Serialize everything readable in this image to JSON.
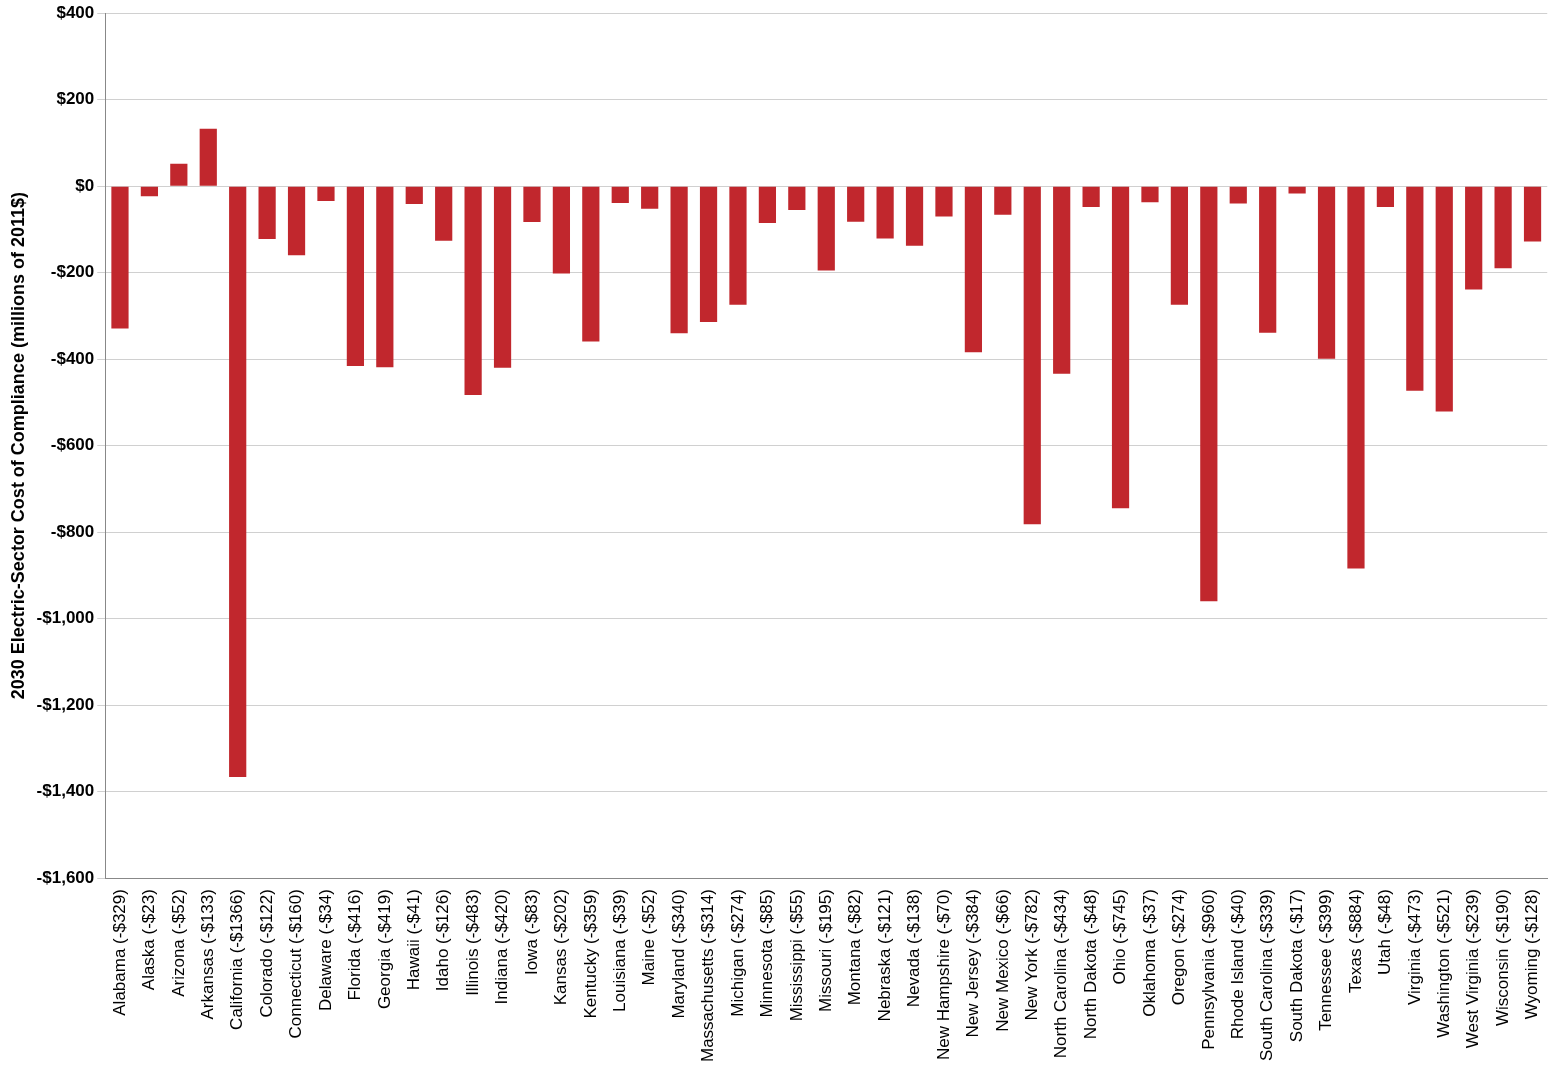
{
  "chart_data": {
    "type": "bar",
    "ylabel": "2030 Electric-Sector Cost of Compliance (millions of 2011$)",
    "categories": [
      "Alabama (-$329)",
      "Alaska (-$23)",
      "Arizona (-$52)",
      "Arkansas (-$133)",
      "California (-$1366)",
      "Colorado (-$122)",
      "Connecticut (-$160)",
      "Delaware (-$34)",
      "Florida (-$416)",
      "Georgia (-$419)",
      "Hawaii (-$41)",
      "Idaho (-$126)",
      "Illinois (-$483)",
      "Indiana (-$420)",
      "Iowa (-$83)",
      "Kansas (-$202)",
      "Kentucky (-$359)",
      "Louisiana (-$39)",
      "Maine (-$52)",
      "Maryland (-$340)",
      "Massachusetts (-$314)",
      "Michigan (-$274)",
      "Minnesota (-$85)",
      "Mississippi (-$55)",
      "Missouri (-$195)",
      "Montana (-$82)",
      "Nebraska (-$121)",
      "Nevada (-$138)",
      "New Hampshire (-$70)",
      "New Jersey (-$384)",
      "New Mexico (-$66)",
      "New York (-$782)",
      "North Carolina (-$434)",
      "North Dakota (-$48)",
      "Ohio (-$745)",
      "Oklahoma (-$37)",
      "Oregon (-$274)",
      "Pennsylvania (-$960)",
      "Rhode Island (-$40)",
      "South Carolina (-$339)",
      "South Dakota (-$17)",
      "Tennessee (-$399)",
      "Texas (-$884)",
      "Utah (-$48)",
      "Virginia (-$473)",
      "Washington (-$521)",
      "West Virginia (-$239)",
      "Wisconsin (-$190)",
      "Wyoming (-$128)"
    ],
    "values": [
      -329,
      -23,
      52,
      133,
      -1366,
      -122,
      -160,
      -34,
      -416,
      -419,
      -41,
      -126,
      -483,
      -420,
      -83,
      -202,
      -359,
      -39,
      -52,
      -340,
      -314,
      -274,
      -85,
      -55,
      -195,
      -82,
      -121,
      -138,
      -70,
      -384,
      -66,
      -782,
      -434,
      -48,
      -745,
      -37,
      -274,
      -960,
      -40,
      -339,
      -17,
      -399,
      -884,
      -48,
      -473,
      -521,
      -239,
      -190,
      -128
    ],
    "color": "#c1272d",
    "ylim": [
      -1600,
      400
    ],
    "yticks": [
      {
        "value": -1600,
        "label": "-$1,600"
      },
      {
        "value": -1400,
        "label": "-$1,400"
      },
      {
        "value": -1200,
        "label": "-$1,200"
      },
      {
        "value": -1000,
        "label": "-$1,000"
      },
      {
        "value": -800,
        "label": "-$800"
      },
      {
        "value": -600,
        "label": "-$600"
      },
      {
        "value": -400,
        "label": "-$400"
      },
      {
        "value": -200,
        "label": "-$200"
      },
      {
        "value": 0,
        "label": "$0"
      },
      {
        "value": 200,
        "label": "$200"
      },
      {
        "value": 400,
        "label": "$400"
      }
    ],
    "grid": "y"
  }
}
